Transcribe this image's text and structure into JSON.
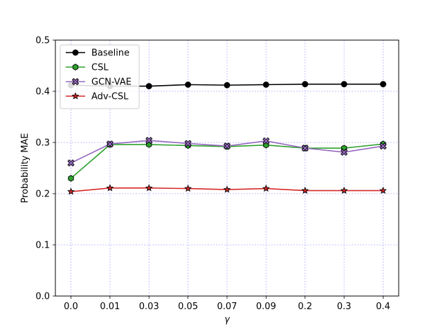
{
  "chart_data": {
    "type": "line",
    "categories": [
      "0.0",
      "0.01",
      "0.03",
      "0.05",
      "0.07",
      "0.09",
      "0.2",
      "0.3",
      "0.4"
    ],
    "xlabel": "γ",
    "ylabel": "Probability MAE",
    "ylim": [
      0,
      0.5
    ],
    "yticks": [
      "0.0",
      "0.1",
      "0.2",
      "0.3",
      "0.4",
      "0.5"
    ],
    "grid": true,
    "legend_position": "top-left",
    "series": [
      {
        "name": "Baseline",
        "color": "#000000",
        "marker": "circle",
        "values": [
          0.412,
          0.41,
          0.41,
          0.413,
          0.412,
          0.413,
          0.414,
          0.414,
          0.414
        ]
      },
      {
        "name": "CSL",
        "color": "#2ca02c",
        "marker": "hexagon",
        "values": [
          0.23,
          0.296,
          0.296,
          0.294,
          0.292,
          0.295,
          0.289,
          0.289,
          0.297
        ]
      },
      {
        "name": "GCN-VAE",
        "color": "#9467bd",
        "marker": "x-filled",
        "values": [
          0.26,
          0.297,
          0.304,
          0.298,
          0.293,
          0.303,
          0.289,
          0.281,
          0.293
        ]
      },
      {
        "name": "Adv-CSL",
        "color": "#d62728",
        "marker": "star",
        "values": [
          0.204,
          0.211,
          0.211,
          0.21,
          0.208,
          0.21,
          0.206,
          0.206,
          0.206
        ]
      }
    ]
  }
}
